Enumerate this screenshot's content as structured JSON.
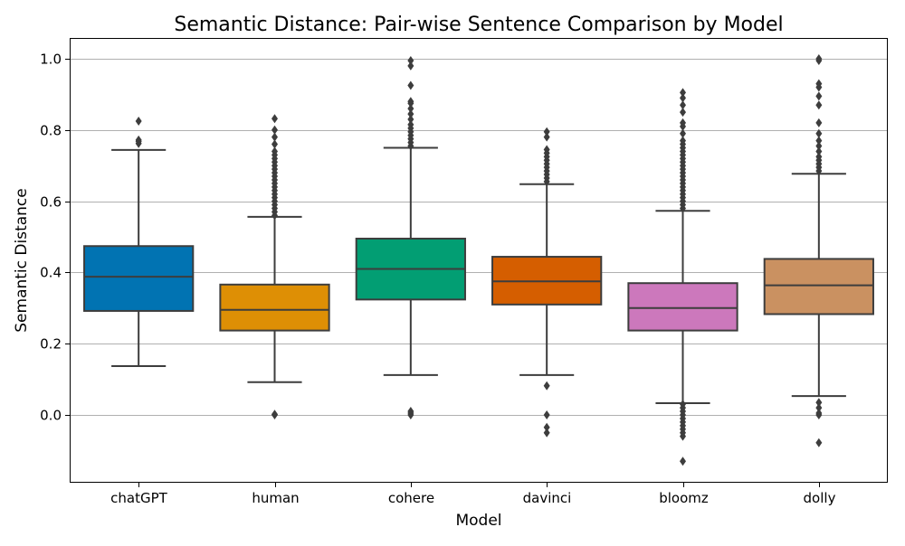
{
  "chart_data": {
    "type": "box",
    "title": "Semantic Distance: Pair-wise Sentence Comparison by Model",
    "xlabel": "Model",
    "ylabel": "Semantic Distance",
    "ylim": [
      -0.19,
      1.06
    ],
    "yticks": [
      0.0,
      0.2,
      0.4,
      0.6,
      0.8,
      1.0
    ],
    "ytick_labels": [
      "0.0",
      "0.2",
      "0.4",
      "0.6",
      "0.8",
      "1.0"
    ],
    "grid": "horizontal",
    "categories": [
      "chatGPT",
      "human",
      "cohere",
      "davinci",
      "bloomz",
      "dolly"
    ],
    "boxes": [
      {
        "name": "chatGPT",
        "color": "#0173b2",
        "whisker_low": 0.137,
        "q1": 0.292,
        "median": 0.388,
        "q3": 0.474,
        "whisker_high": 0.744,
        "outliers": [
          0.762,
          0.768,
          0.772,
          0.825
        ]
      },
      {
        "name": "human",
        "color": "#de8f05",
        "whisker_low": 0.092,
        "q1": 0.237,
        "median": 0.295,
        "q3": 0.366,
        "whisker_high": 0.556,
        "outliers": [
          0.0,
          0.002,
          0.56,
          0.57,
          0.58,
          0.59,
          0.6,
          0.61,
          0.62,
          0.63,
          0.64,
          0.65,
          0.66,
          0.67,
          0.68,
          0.69,
          0.7,
          0.71,
          0.72,
          0.73,
          0.74,
          0.76,
          0.78,
          0.8,
          0.832
        ]
      },
      {
        "name": "cohere",
        "color": "#029e73",
        "whisker_low": 0.112,
        "q1": 0.324,
        "median": 0.41,
        "q3": 0.495,
        "whisker_high": 0.75,
        "outliers": [
          0.0,
          0.005,
          0.01,
          0.755,
          0.765,
          0.775,
          0.785,
          0.795,
          0.805,
          0.815,
          0.83,
          0.845,
          0.86,
          0.875,
          0.88,
          0.925,
          0.98,
          0.995
        ]
      },
      {
        "name": "davinci",
        "color": "#d55e00",
        "whisker_low": 0.112,
        "q1": 0.31,
        "median": 0.375,
        "q3": 0.444,
        "whisker_high": 0.648,
        "outliers": [
          -0.05,
          -0.035,
          0.0,
          0.082,
          0.655,
          0.665,
          0.675,
          0.685,
          0.695,
          0.705,
          0.715,
          0.725,
          0.735,
          0.745,
          0.78,
          0.795
        ]
      },
      {
        "name": "bloomz",
        "color": "#cc78bc",
        "whisker_low": 0.033,
        "q1": 0.237,
        "median": 0.3,
        "q3": 0.37,
        "whisker_high": 0.573,
        "outliers": [
          -0.13,
          -0.06,
          -0.05,
          -0.04,
          -0.03,
          -0.02,
          -0.01,
          0.0,
          0.01,
          0.02,
          0.03,
          0.58,
          0.59,
          0.6,
          0.61,
          0.62,
          0.63,
          0.64,
          0.65,
          0.66,
          0.67,
          0.68,
          0.69,
          0.7,
          0.71,
          0.72,
          0.73,
          0.74,
          0.75,
          0.76,
          0.77,
          0.79,
          0.81,
          0.82,
          0.85,
          0.87,
          0.89,
          0.905
        ]
      },
      {
        "name": "dolly",
        "color": "#ca9161",
        "whisker_low": 0.053,
        "q1": 0.283,
        "median": 0.364,
        "q3": 0.438,
        "whisker_high": 0.677,
        "outliers": [
          -0.078,
          0.0,
          0.005,
          0.02,
          0.035,
          0.685,
          0.695,
          0.705,
          0.715,
          0.725,
          0.74,
          0.755,
          0.77,
          0.79,
          0.82,
          0.87,
          0.895,
          0.92,
          0.93,
          0.995,
          1.0
        ]
      }
    ]
  }
}
